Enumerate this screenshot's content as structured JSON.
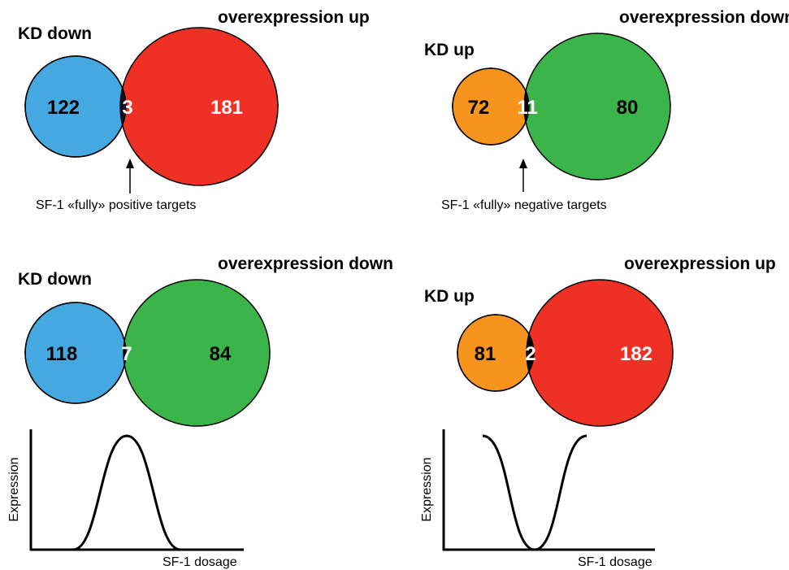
{
  "colors": {
    "blue": "#46a8e0",
    "red": "#ee3124",
    "orange": "#f7941d",
    "green": "#3bb54a",
    "intersection_dark": "#0a0f24",
    "intersection_black": "#000000"
  },
  "venns": [
    {
      "left_label": "KD down",
      "right_label": "overexpression up",
      "left_only": "122",
      "overlap": "3",
      "right_only": "181",
      "left_color": "blue",
      "right_color": "red",
      "annotation": "SF-1 «fully» positive targets"
    },
    {
      "left_label": "KD up",
      "right_label": "overexpression down",
      "left_only": "72",
      "overlap": "11",
      "right_only": "80",
      "left_color": "orange",
      "right_color": "green",
      "annotation": "SF-1 «fully» negative targets"
    },
    {
      "left_label": "KD down",
      "right_label": "overexpression down",
      "left_only": "118",
      "overlap": "7",
      "right_only": "84",
      "left_color": "blue",
      "right_color": "green"
    },
    {
      "left_label": "KD up",
      "right_label": "overexpression up",
      "left_only": "81",
      "overlap": "2",
      "right_only": "182",
      "left_color": "orange",
      "right_color": "red"
    }
  ],
  "curves": [
    {
      "shape": "peak",
      "ylabel": "Expression",
      "xlabel": "SF-1 dosage"
    },
    {
      "shape": "trough",
      "ylabel": "Expression",
      "xlabel": "SF-1 dosage"
    }
  ]
}
